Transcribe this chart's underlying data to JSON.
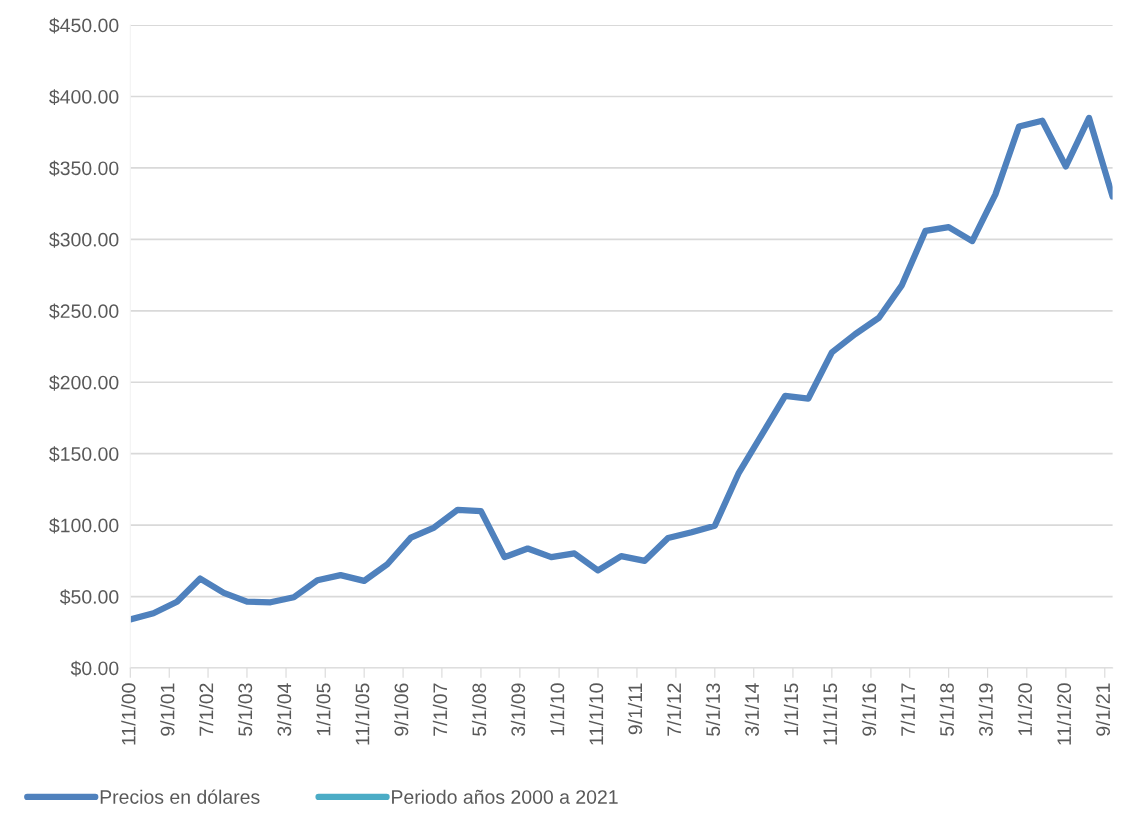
{
  "chart_data": {
    "type": "line",
    "x": [
      "2000-11",
      "2001-05",
      "2001-11",
      "2002-05",
      "2002-11",
      "2003-05",
      "2003-11",
      "2004-05",
      "2004-11",
      "2005-05",
      "2005-11",
      "2006-05",
      "2006-11",
      "2007-05",
      "2007-11",
      "2008-05",
      "2008-11",
      "2009-05",
      "2009-11",
      "2010-05",
      "2010-11",
      "2011-05",
      "2011-11",
      "2012-05",
      "2012-11",
      "2013-05",
      "2013-11",
      "2014-05",
      "2014-11",
      "2015-05",
      "2015-11",
      "2016-05",
      "2016-11",
      "2017-05",
      "2017-11",
      "2018-05",
      "2018-11",
      "2019-05",
      "2019-11",
      "2020-05",
      "2020-11",
      "2021-05",
      "2021-11"
    ],
    "series": [
      {
        "name": "Precios en dólares",
        "color": "#4f81bd",
        "values": [
          34,
          38.3,
          46.4,
          62.6,
          52.6,
          46.4,
          46,
          49.5,
          61.4,
          65,
          61,
          72.6,
          91.2,
          98.3,
          110.7,
          109.8,
          77.6,
          83.6,
          77.6,
          80.2,
          68.3,
          78.3,
          75,
          91,
          95,
          99.5,
          136,
          163,
          190.5,
          188.6,
          220.9,
          233.7,
          245,
          268,
          306,
          308.6,
          298.8,
          331.5,
          379,
          383,
          351,
          385,
          330
        ]
      },
      {
        "name": "Periodo años 2000 a 2021",
        "color": "#4bacc6",
        "values": [
          null,
          null,
          null,
          null,
          null,
          null,
          null,
          null,
          null,
          null,
          null,
          null,
          null,
          null,
          null,
          null,
          null,
          null,
          null,
          null,
          null,
          null,
          null,
          null,
          null,
          null,
          null,
          null,
          null,
          null,
          null,
          null,
          null,
          null,
          null,
          null,
          null,
          null,
          null,
          null,
          null,
          null,
          null
        ]
      }
    ],
    "xlim": [
      "2000-11",
      "2021-11"
    ],
    "xticks": [
      {
        "value": "2000-11",
        "label": "11/1/00"
      },
      {
        "value": "2001-09",
        "label": "9/1/01"
      },
      {
        "value": "2002-07",
        "label": "7/1/02"
      },
      {
        "value": "2003-05",
        "label": "5/1/03"
      },
      {
        "value": "2004-03",
        "label": "3/1/04"
      },
      {
        "value": "2005-01",
        "label": "1/1/05"
      },
      {
        "value": "2005-11",
        "label": "11/1/05"
      },
      {
        "value": "2006-09",
        "label": "9/1/06"
      },
      {
        "value": "2007-07",
        "label": "7/1/07"
      },
      {
        "value": "2008-05",
        "label": "5/1/08"
      },
      {
        "value": "2009-03",
        "label": "3/1/09"
      },
      {
        "value": "2010-01",
        "label": "1/1/10"
      },
      {
        "value": "2010-11",
        "label": "11/1/10"
      },
      {
        "value": "2011-09",
        "label": "9/1/11"
      },
      {
        "value": "2012-07",
        "label": "7/1/12"
      },
      {
        "value": "2013-05",
        "label": "5/1/13"
      },
      {
        "value": "2014-03",
        "label": "3/1/14"
      },
      {
        "value": "2015-01",
        "label": "1/1/15"
      },
      {
        "value": "2015-11",
        "label": "11/1/15"
      },
      {
        "value": "2016-09",
        "label": "9/1/16"
      },
      {
        "value": "2017-07",
        "label": "7/1/17"
      },
      {
        "value": "2018-05",
        "label": "5/1/18"
      },
      {
        "value": "2019-03",
        "label": "3/1/19"
      },
      {
        "value": "2020-01",
        "label": "1/1/20"
      },
      {
        "value": "2020-11",
        "label": "11/1/20"
      },
      {
        "value": "2021-09",
        "label": "9/1/21"
      }
    ],
    "ylim": [
      0,
      450
    ],
    "yticks": [
      {
        "value": 0,
        "label": "$0.00"
      },
      {
        "value": 50,
        "label": "$50.00"
      },
      {
        "value": 100,
        "label": "$100.00"
      },
      {
        "value": 150,
        "label": "$150.00"
      },
      {
        "value": 200,
        "label": "$200.00"
      },
      {
        "value": 250,
        "label": "$250.00"
      },
      {
        "value": 300,
        "label": "$300.00"
      },
      {
        "value": 350,
        "label": "$350.00"
      },
      {
        "value": 400,
        "label": "$400.00"
      },
      {
        "value": 450,
        "label": "$450.00"
      }
    ],
    "grid": "y",
    "legend": "bottom",
    "marker": "none",
    "line_style": "solid"
  }
}
